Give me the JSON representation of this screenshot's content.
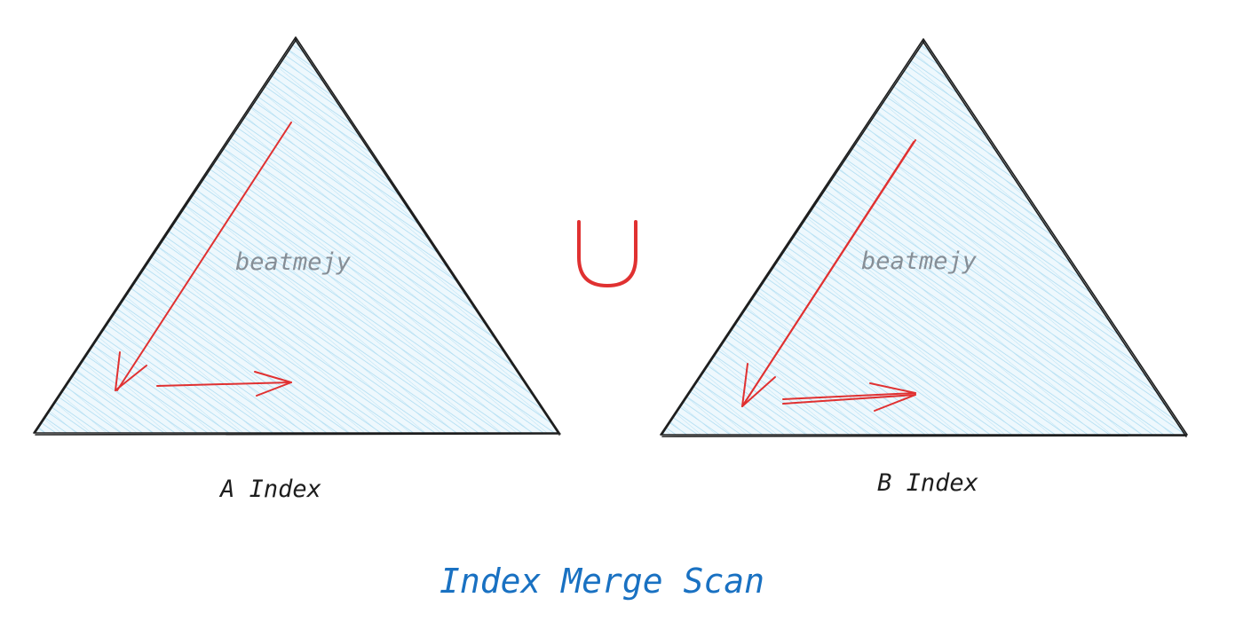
{
  "diagram": {
    "title": "Index Merge Scan",
    "operator": "∪",
    "left": {
      "label": "A Index",
      "watermark": "beatmejy"
    },
    "right": {
      "label": "B Index",
      "watermark": "beatmejy"
    }
  },
  "colors": {
    "hatch": "#a5d8f0",
    "fill": "#e7f5fc",
    "outline": "#1e1e1e",
    "arrow": "#e03131",
    "operator": "#e03131",
    "title": "#1971c2",
    "watermark": "#868e96",
    "label": "#1e1e1e"
  }
}
